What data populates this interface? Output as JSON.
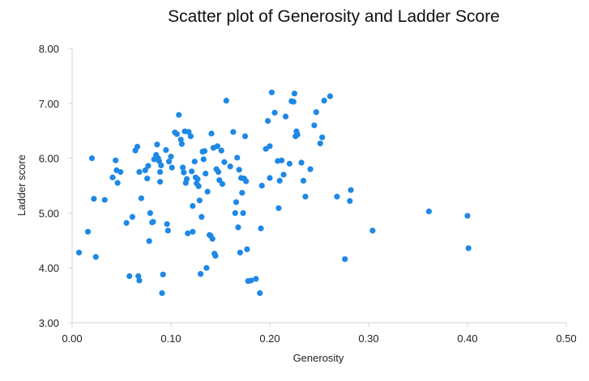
{
  "chart_data": {
    "type": "scatter",
    "title": "Scatter plot of Generosity and Ladder Score",
    "xlabel": "Generosity",
    "ylabel": "Ladder score",
    "xlim": [
      0,
      0.5
    ],
    "ylim": [
      3,
      8
    ],
    "xticks": [
      "0.00",
      "0.10",
      "0.20",
      "0.30",
      "0.40",
      "0.50"
    ],
    "yticks": [
      "3.00",
      "4.00",
      "5.00",
      "6.00",
      "7.00",
      "8.00"
    ],
    "grid": false,
    "marker_color": "#1e88e5",
    "points": [
      [
        0.007,
        4.28
      ],
      [
        0.016,
        4.66
      ],
      [
        0.02,
        6.0
      ],
      [
        0.022,
        5.26
      ],
      [
        0.024,
        4.2
      ],
      [
        0.033,
        5.24
      ],
      [
        0.041,
        5.65
      ],
      [
        0.044,
        5.96
      ],
      [
        0.045,
        5.78
      ],
      [
        0.046,
        5.55
      ],
      [
        0.049,
        5.75
      ],
      [
        0.055,
        4.82
      ],
      [
        0.058,
        3.85
      ],
      [
        0.061,
        4.93
      ],
      [
        0.064,
        6.14
      ],
      [
        0.066,
        6.21
      ],
      [
        0.067,
        3.85
      ],
      [
        0.068,
        3.77
      ],
      [
        0.068,
        5.75
      ],
      [
        0.07,
        5.27
      ],
      [
        0.074,
        5.78
      ],
      [
        0.076,
        5.63
      ],
      [
        0.077,
        5.86
      ],
      [
        0.078,
        4.49
      ],
      [
        0.079,
        5.0
      ],
      [
        0.081,
        4.83
      ],
      [
        0.082,
        4.84
      ],
      [
        0.083,
        5.98
      ],
      [
        0.085,
        6.06
      ],
      [
        0.086,
        6.25
      ],
      [
        0.087,
        6.0
      ],
      [
        0.088,
        5.95
      ],
      [
        0.089,
        5.75
      ],
      [
        0.089,
        5.57
      ],
      [
        0.09,
        5.87
      ],
      [
        0.091,
        3.54
      ],
      [
        0.092,
        3.88
      ],
      [
        0.095,
        6.15
      ],
      [
        0.096,
        4.8
      ],
      [
        0.097,
        4.68
      ],
      [
        0.098,
        5.94
      ],
      [
        0.1,
        6.03
      ],
      [
        0.101,
        5.83
      ],
      [
        0.104,
        6.47
      ],
      [
        0.106,
        6.44
      ],
      [
        0.108,
        6.79
      ],
      [
        0.11,
        6.34
      ],
      [
        0.111,
        6.26
      ],
      [
        0.112,
        5.83
      ],
      [
        0.113,
        5.74
      ],
      [
        0.114,
        6.49
      ],
      [
        0.115,
        5.55
      ],
      [
        0.116,
        5.62
      ],
      [
        0.117,
        4.63
      ],
      [
        0.118,
        6.48
      ],
      [
        0.12,
        6.4
      ],
      [
        0.121,
        5.76
      ],
      [
        0.122,
        5.13
      ],
      [
        0.122,
        4.66
      ],
      [
        0.124,
        5.94
      ],
      [
        0.125,
        5.65
      ],
      [
        0.126,
        5.54
      ],
      [
        0.127,
        5.62
      ],
      [
        0.128,
        5.49
      ],
      [
        0.129,
        5.23
      ],
      [
        0.13,
        3.89
      ],
      [
        0.131,
        4.93
      ],
      [
        0.132,
        6.12
      ],
      [
        0.133,
        5.98
      ],
      [
        0.134,
        6.13
      ],
      [
        0.135,
        5.72
      ],
      [
        0.136,
        4.0
      ],
      [
        0.137,
        5.39
      ],
      [
        0.139,
        4.6
      ],
      [
        0.14,
        4.59
      ],
      [
        0.141,
        6.45
      ],
      [
        0.142,
        4.53
      ],
      [
        0.143,
        6.19
      ],
      [
        0.144,
        4.26
      ],
      [
        0.145,
        4.22
      ],
      [
        0.146,
        5.8
      ],
      [
        0.147,
        6.22
      ],
      [
        0.148,
        5.75
      ],
      [
        0.149,
        5.6
      ],
      [
        0.151,
        6.14
      ],
      [
        0.152,
        5.53
      ],
      [
        0.154,
        5.93
      ],
      [
        0.156,
        7.05
      ],
      [
        0.16,
        5.85
      ],
      [
        0.163,
        6.48
      ],
      [
        0.165,
        5.0
      ],
      [
        0.166,
        5.2
      ],
      [
        0.167,
        6.01
      ],
      [
        0.168,
        4.74
      ],
      [
        0.169,
        5.79
      ],
      [
        0.17,
        4.28
      ],
      [
        0.171,
        5.64
      ],
      [
        0.172,
        5.37
      ],
      [
        0.173,
        5.0
      ],
      [
        0.174,
        5.63
      ],
      [
        0.175,
        6.4
      ],
      [
        0.176,
        5.58
      ],
      [
        0.177,
        4.34
      ],
      [
        0.178,
        3.76
      ],
      [
        0.181,
        3.77
      ],
      [
        0.186,
        3.8
      ],
      [
        0.19,
        3.54
      ],
      [
        0.191,
        4.72
      ],
      [
        0.192,
        5.5
      ],
      [
        0.196,
        6.17
      ],
      [
        0.198,
        6.68
      ],
      [
        0.2,
        5.64
      ],
      [
        0.2,
        6.22
      ],
      [
        0.202,
        7.2
      ],
      [
        0.205,
        6.83
      ],
      [
        0.208,
        5.95
      ],
      [
        0.209,
        5.09
      ],
      [
        0.21,
        5.59
      ],
      [
        0.212,
        5.96
      ],
      [
        0.214,
        5.7
      ],
      [
        0.216,
        6.76
      ],
      [
        0.22,
        5.9
      ],
      [
        0.222,
        7.04
      ],
      [
        0.224,
        7.03
      ],
      [
        0.225,
        7.18
      ],
      [
        0.226,
        6.4
      ],
      [
        0.227,
        6.49
      ],
      [
        0.228,
        6.43
      ],
      [
        0.232,
        5.92
      ],
      [
        0.234,
        5.59
      ],
      [
        0.236,
        5.3
      ],
      [
        0.241,
        5.8
      ],
      [
        0.245,
        6.6
      ],
      [
        0.247,
        6.84
      ],
      [
        0.251,
        6.27
      ],
      [
        0.253,
        6.38
      ],
      [
        0.255,
        7.05
      ],
      [
        0.261,
        7.13
      ],
      [
        0.268,
        5.3
      ],
      [
        0.276,
        4.16
      ],
      [
        0.281,
        5.22
      ],
      [
        0.282,
        5.42
      ],
      [
        0.304,
        4.68
      ],
      [
        0.361,
        5.03
      ],
      [
        0.4,
        4.95
      ],
      [
        0.401,
        4.36
      ]
    ]
  }
}
